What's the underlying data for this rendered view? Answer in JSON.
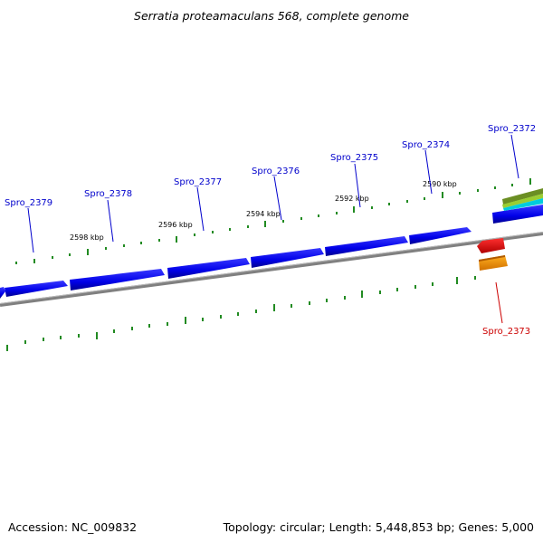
{
  "title": "Serratia proteamaculans 568, complete genome",
  "accession": "Accession: NC_009832",
  "summary": "Topology: circular; Length: 5,448,853 bp; Genes: 5,000",
  "colors": {
    "forward_gene": "#0000ee",
    "reverse_gene_red": "#ee0000",
    "reverse_gene_orange": "#ff9900",
    "track_olive": "#6b8e23",
    "track_cyan": "#00ccdd",
    "backbone": "#888888",
    "ticks": "#228b22",
    "label_blue": "#0000cc",
    "label_red": "#cc0000"
  },
  "scale_labels": [
    "2598 kbp",
    "2596 kbp",
    "2594 kbp",
    "2592 kbp",
    "2590 kbp"
  ],
  "genes": [
    {
      "label": "Spro_2379",
      "strand": "forward",
      "color": "blue"
    },
    {
      "label": "Spro_2378",
      "strand": "forward",
      "color": "blue"
    },
    {
      "label": "Spro_2377",
      "strand": "forward",
      "color": "blue"
    },
    {
      "label": "Spro_2376",
      "strand": "forward",
      "color": "blue"
    },
    {
      "label": "Spro_2375",
      "strand": "forward",
      "color": "blue"
    },
    {
      "label": "Spro_2374",
      "strand": "forward",
      "color": "blue"
    },
    {
      "label": "Spro_2372",
      "strand": "forward",
      "color": "blue"
    },
    {
      "label": "Spro_2373",
      "strand": "reverse",
      "color": "red"
    }
  ]
}
